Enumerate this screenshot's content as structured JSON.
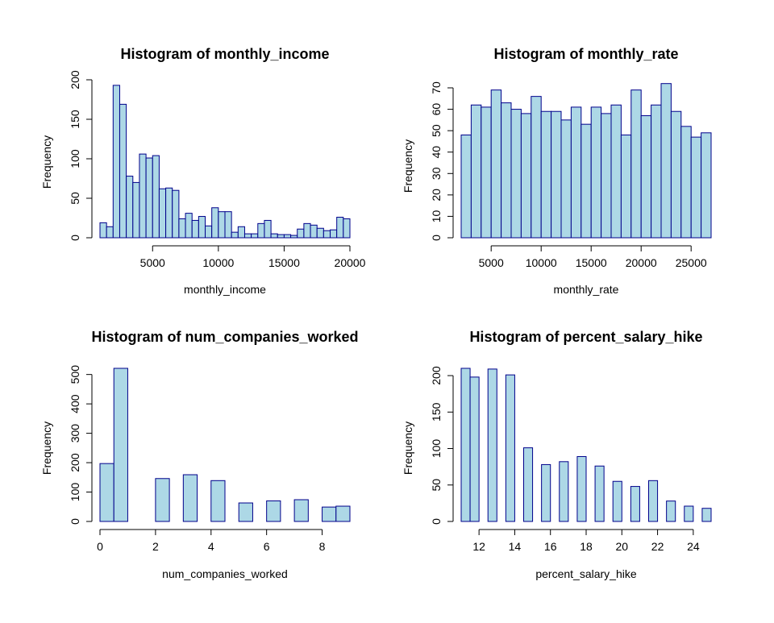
{
  "style": {
    "bar_fill": "#add8e6",
    "bar_border": "#00008b",
    "axis_color": "#000000",
    "background": "#ffffff"
  },
  "chart_data": [
    {
      "type": "bar",
      "subtype": "histogram",
      "title": "Histogram of monthly_income",
      "xlabel": "monthly_income",
      "ylabel": "Frequency",
      "bin_edges": [
        1000,
        1500,
        2000,
        2500,
        3000,
        3500,
        4000,
        4500,
        5000,
        5500,
        6000,
        6500,
        7000,
        7500,
        8000,
        8500,
        9000,
        9500,
        10000,
        10500,
        11000,
        11500,
        12000,
        12500,
        13000,
        13500,
        14000,
        14500,
        15000,
        15500,
        16000,
        16500,
        17000,
        17500,
        18000,
        18500,
        19000,
        19500,
        20000
      ],
      "values": [
        19,
        14,
        193,
        169,
        78,
        70,
        106,
        101,
        104,
        62,
        63,
        60,
        24,
        31,
        22,
        27,
        15,
        38,
        33,
        33,
        7,
        14,
        5,
        5,
        18,
        22,
        5,
        4,
        4,
        3,
        11,
        18,
        16,
        12,
        9,
        10,
        26,
        24
      ],
      "xticks": [
        5000,
        10000,
        15000,
        20000
      ],
      "xtick_labels": [
        "5000",
        "10000",
        "15000",
        "20000"
      ],
      "yticks": [
        0,
        50,
        100,
        150,
        200
      ],
      "ytick_labels": [
        "0",
        "50",
        "100",
        "150",
        "200"
      ],
      "xlim": [
        1000,
        20000
      ],
      "ylim": [
        0,
        200
      ]
    },
    {
      "type": "bar",
      "subtype": "histogram",
      "title": "Histogram of monthly_rate",
      "xlabel": "monthly_rate",
      "ylabel": "Frequency",
      "bin_edges": [
        2000,
        3000,
        4000,
        5000,
        6000,
        7000,
        8000,
        9000,
        10000,
        11000,
        12000,
        13000,
        14000,
        15000,
        16000,
        17000,
        18000,
        19000,
        20000,
        21000,
        22000,
        23000,
        24000,
        25000,
        26000,
        27000
      ],
      "values": [
        48,
        62,
        61,
        69,
        63,
        60,
        58,
        66,
        59,
        59,
        55,
        61,
        53,
        61,
        58,
        62,
        48,
        69,
        57,
        62,
        72,
        59,
        52,
        47,
        49
      ],
      "xticks": [
        5000,
        10000,
        15000,
        20000,
        25000
      ],
      "xtick_labels": [
        "5000",
        "10000",
        "15000",
        "20000",
        "25000"
      ],
      "yticks": [
        0,
        10,
        20,
        30,
        40,
        50,
        60,
        70
      ],
      "ytick_labels": [
        "0",
        "10",
        "20",
        "30",
        "40",
        "50",
        "60",
        "70"
      ],
      "xlim": [
        2000,
        27000
      ],
      "ylim": [
        0,
        70
      ]
    },
    {
      "type": "bar",
      "subtype": "histogram",
      "title": "Histogram of num_companies_worked",
      "xlabel": "num_companies_worked",
      "ylabel": "Frequency",
      "bin_edges": [
        0,
        0.5,
        1,
        1.5,
        2,
        2.5,
        3,
        3.5,
        4,
        4.5,
        5,
        5.5,
        6,
        6.5,
        7,
        7.5,
        8,
        8.5,
        9
      ],
      "values": [
        197,
        521,
        0,
        0,
        146,
        0,
        159,
        0,
        139,
        0,
        63,
        0,
        70,
        0,
        74,
        0,
        49,
        52
      ],
      "xticks": [
        0,
        2,
        4,
        6,
        8
      ],
      "xtick_labels": [
        "0",
        "2",
        "4",
        "6",
        "8"
      ],
      "yticks": [
        0,
        100,
        200,
        300,
        400,
        500
      ],
      "ytick_labels": [
        "0",
        "100",
        "200",
        "300",
        "400",
        "500"
      ],
      "xlim": [
        0,
        9
      ],
      "ylim": [
        0,
        521
      ]
    },
    {
      "type": "bar",
      "subtype": "histogram",
      "title": "Histogram of percent_salary_hike",
      "xlabel": "percent_salary_hike",
      "ylabel": "Frequency",
      "bin_edges": [
        11,
        11.5,
        12,
        12.5,
        13,
        13.5,
        14,
        14.5,
        15,
        15.5,
        16,
        16.5,
        17,
        17.5,
        18,
        18.5,
        19,
        19.5,
        20,
        20.5,
        21,
        21.5,
        22,
        22.5,
        23,
        23.5,
        24,
        24.5,
        25
      ],
      "values": [
        210,
        198,
        0,
        209,
        0,
        201,
        0,
        101,
        0,
        78,
        0,
        82,
        0,
        89,
        0,
        76,
        0,
        55,
        0,
        48,
        0,
        56,
        0,
        28,
        0,
        21,
        0,
        18
      ],
      "xticks": [
        12,
        14,
        16,
        18,
        20,
        22,
        24
      ],
      "xtick_labels": [
        "12",
        "14",
        "16",
        "18",
        "20",
        "22",
        "24"
      ],
      "yticks": [
        0,
        50,
        100,
        150,
        200
      ],
      "ytick_labels": [
        "0",
        "50",
        "100",
        "150",
        "200"
      ],
      "xlim": [
        11,
        25
      ],
      "ylim": [
        0,
        210
      ]
    }
  ]
}
